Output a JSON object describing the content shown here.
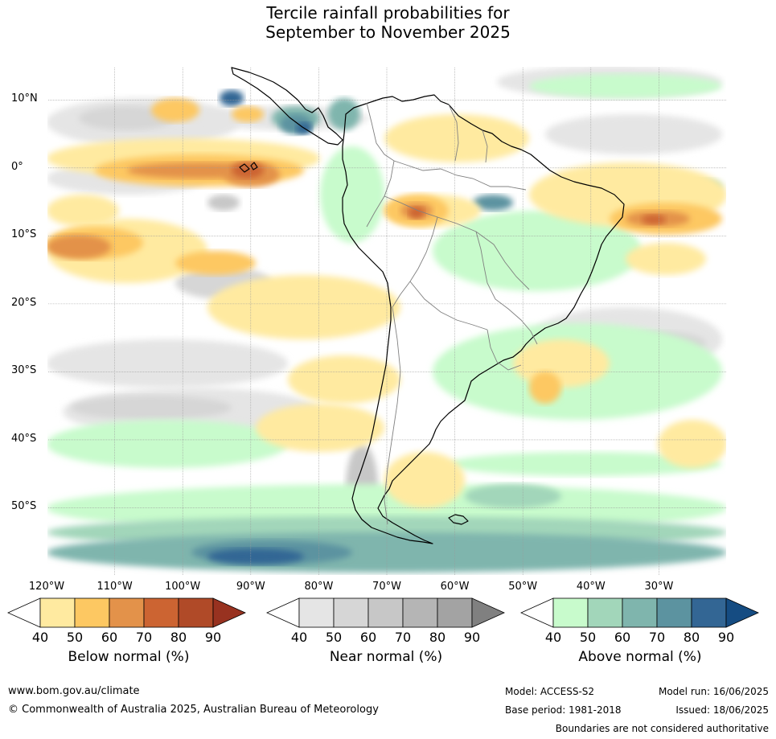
{
  "title": {
    "line1": "Tercile rainfall probabilities for",
    "line2": "September to November 2025"
  },
  "map": {
    "lat_labels": [
      "10°N",
      "0°",
      "10°S",
      "20°S",
      "30°S",
      "40°S",
      "50°S"
    ],
    "lon_labels": [
      "120°W",
      "110°W",
      "100°W",
      "90°W",
      "80°W",
      "70°W",
      "60°W",
      "50°W",
      "40°W",
      "30°W"
    ],
    "extent": {
      "lon_min": -120,
      "lon_max": -20,
      "lat_min": -60,
      "lat_max": 15
    }
  },
  "legends": [
    {
      "title": "Below normal (%)",
      "ticks": [
        "40",
        "50",
        "60",
        "70",
        "80",
        "90"
      ],
      "colors": [
        "#ffffff",
        "#ffeaa0",
        "#fdc862",
        "#e3924a",
        "#cc6432",
        "#b04a28",
        "#983220"
      ]
    },
    {
      "title": "Near normal (%)",
      "ticks": [
        "40",
        "50",
        "60",
        "70",
        "80",
        "90"
      ],
      "colors": [
        "#ffffff",
        "#e5e5e5",
        "#d6d6d6",
        "#c7c7c7",
        "#b5b5b5",
        "#a3a3a3",
        "#808080"
      ]
    },
    {
      "title": "Above normal (%)",
      "ticks": [
        "40",
        "50",
        "60",
        "70",
        "80",
        "90"
      ],
      "colors": [
        "#ffffff",
        "#c8fbcc",
        "#a2d6ba",
        "#7fb5ad",
        "#5c93a0",
        "#336694",
        "#154c82"
      ]
    }
  ],
  "footer": {
    "url": "www.bom.gov.au/climate",
    "copyright": "© Commonwealth of Australia 2025, Australian Bureau of Meteorology",
    "model": "Model: ACCESS-S2",
    "base_period": "Base period: 1981-2018",
    "model_run": "Model run: 16/06/2025",
    "issued": "Issued: 18/06/2025",
    "disclaimer": "Boundaries are not considered authoritative"
  }
}
